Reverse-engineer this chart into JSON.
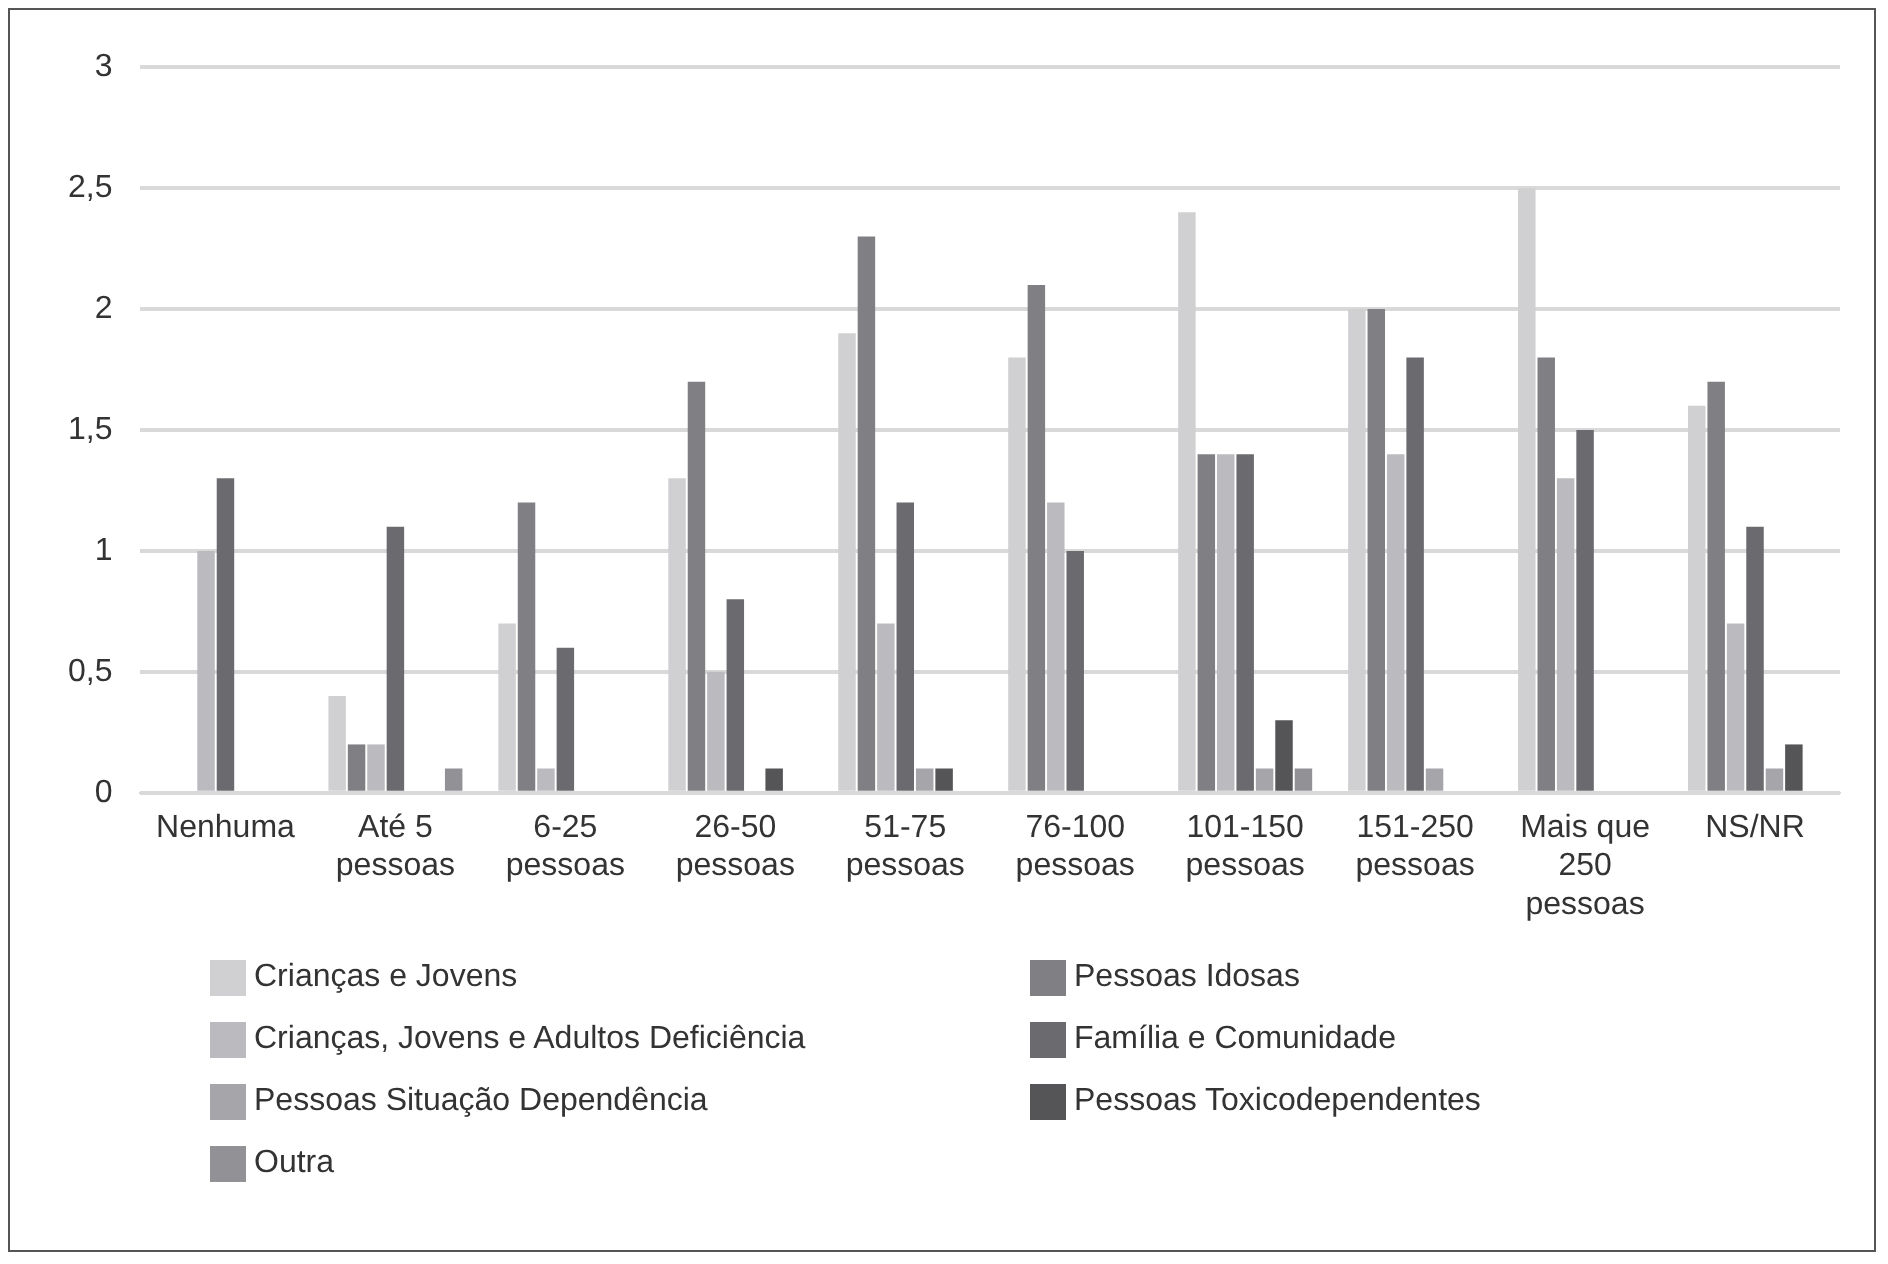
{
  "chart_data": {
    "type": "bar",
    "categories": [
      "Nenhuma",
      "Até 5 pessoas",
      "6-25 pessoas",
      "26-50 pessoas",
      "51-75 pessoas",
      "76-100 pessoas",
      "101-150 pessoas",
      "151-250 pessoas",
      "Mais que 250 pessoas",
      "NS/NR"
    ],
    "series": [
      {
        "name": "Crianças e Jovens",
        "color": "#d0d0d2",
        "values": [
          null,
          0.4,
          0.7,
          1.3,
          1.9,
          1.8,
          2.4,
          2.0,
          2.5,
          1.6
        ]
      },
      {
        "name": "Pessoas Idosas",
        "color": "#808084",
        "values": [
          null,
          0.2,
          1.2,
          1.7,
          2.3,
          2.1,
          1.4,
          2.0,
          1.8,
          1.7
        ]
      },
      {
        "name": "Crianças, Jovens e Adultos Deficiência",
        "color": "#bbbbbf",
        "values": [
          1.0,
          0.2,
          0.1,
          0.5,
          0.7,
          1.2,
          1.4,
          1.4,
          1.3,
          0.7
        ]
      },
      {
        "name": "Família e Comunidade",
        "color": "#6b6b6f",
        "values": [
          1.3,
          1.1,
          0.6,
          0.8,
          1.2,
          1.0,
          1.4,
          1.8,
          1.5,
          1.1
        ]
      },
      {
        "name": "Pessoas Situação Dependência",
        "color": "#a6a6aa",
        "values": [
          null,
          null,
          null,
          null,
          0.1,
          null,
          0.1,
          0.1,
          null,
          0.1
        ]
      },
      {
        "name": "Pessoas Toxicodependentes",
        "color": "#555558",
        "values": [
          null,
          null,
          null,
          0.1,
          0.1,
          null,
          0.3,
          null,
          null,
          0.2
        ]
      },
      {
        "name": "Outra",
        "color": "#919196",
        "values": [
          null,
          0.1,
          null,
          null,
          null,
          null,
          0.1,
          null,
          null,
          null
        ]
      }
    ],
    "ylim": [
      0,
      3
    ],
    "yticks": [
      0,
      {
        "value": 0.5,
        "label": "0,5"
      },
      1,
      {
        "value": 1.5,
        "label": "1,5"
      },
      2,
      {
        "value": 2.5,
        "label": "2,5"
      },
      3
    ],
    "grid": "y",
    "legend": "bottom"
  }
}
